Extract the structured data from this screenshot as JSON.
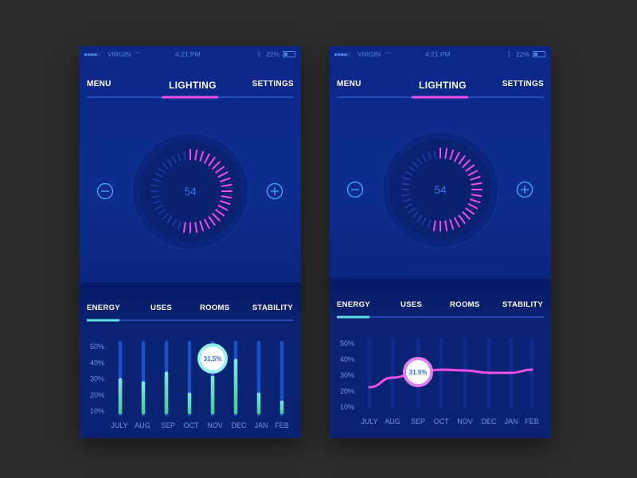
{
  "status": {
    "carrier": "VIRGIN",
    "time": "4:21 PM",
    "battery": "22%"
  },
  "nav": {
    "left": "MENU",
    "center": "LIGHTING",
    "right": "SETTINGS"
  },
  "dial": {
    "value": "54",
    "level_percent": 54
  },
  "tabs": [
    "ENERGY",
    "USES",
    "ROOMS",
    "STABILITY"
  ],
  "colors": {
    "accent_pink": "#f04ee8",
    "accent_cyan": "#5fe0e0",
    "bar_green": "#4fd89a",
    "background": "#0a2277"
  },
  "panels": [
    {
      "chart_data": {
        "type": "bar",
        "categories": [
          "JULY",
          "AUG",
          "SEP",
          "OCT",
          "NOV",
          "DEC",
          "JAN",
          "FEB"
        ],
        "values": [
          30,
          28,
          34,
          21,
          31.5,
          42,
          21,
          16
        ],
        "y_ticks": [
          "50%",
          "40%",
          "30%",
          "20%",
          "10%"
        ],
        "ylim": [
          10,
          50
        ],
        "highlight_index": 4,
        "highlight_label": "31.5%"
      }
    },
    {
      "chart_data": {
        "type": "line",
        "categories": [
          "JULY",
          "AUG",
          "SEP",
          "OCT",
          "NOV",
          "DEC",
          "JAN",
          "FEB"
        ],
        "values": [
          22,
          28,
          31.5,
          33,
          32.5,
          31,
          31,
          33
        ],
        "y_ticks": [
          "50%",
          "40%",
          "30%",
          "20%",
          "10%"
        ],
        "ylim": [
          10,
          50
        ],
        "highlight_index": 2,
        "highlight_label": "31.5%"
      }
    }
  ]
}
